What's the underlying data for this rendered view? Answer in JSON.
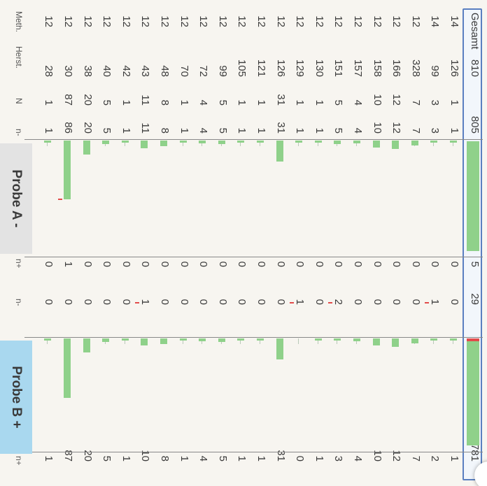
{
  "headers": {
    "meth": "Meth.",
    "herst": "Herst.",
    "n": "N",
    "a_minus": "n-",
    "a_plus": "n+",
    "b_minus": "n-",
    "b_plus": "n+"
  },
  "panels": {
    "probe_a": "Probe A -",
    "probe_b": "Probe B +"
  },
  "total": {
    "label": "Gesamt",
    "n": "810",
    "a_minus": "805",
    "a_plus": "5",
    "b_minus": "29",
    "b_plus": "781"
  },
  "rows": [
    {
      "meth": "14",
      "herst": "126",
      "n": "1",
      "a_minus": "1",
      "a_plus": "0",
      "b_minus": "0",
      "b_plus": "1"
    },
    {
      "meth": "14",
      "herst": "99",
      "n": "3",
      "a_minus": "3",
      "a_plus": "0",
      "b_minus": "1",
      "b_plus": "2"
    },
    {
      "meth": "12",
      "herst": "328",
      "n": "7",
      "a_minus": "7",
      "a_plus": "0",
      "b_minus": "0",
      "b_plus": "7"
    },
    {
      "meth": "12",
      "herst": "166",
      "n": "12",
      "a_minus": "12",
      "a_plus": "0",
      "b_minus": "0",
      "b_plus": "12"
    },
    {
      "meth": "12",
      "herst": "158",
      "n": "10",
      "a_minus": "10",
      "a_plus": "0",
      "b_minus": "0",
      "b_plus": "10"
    },
    {
      "meth": "12",
      "herst": "157",
      "n": "4",
      "a_minus": "4",
      "a_plus": "0",
      "b_minus": "0",
      "b_plus": "4"
    },
    {
      "meth": "12",
      "herst": "151",
      "n": "5",
      "a_minus": "5",
      "a_plus": "0",
      "b_minus": "2",
      "b_plus": "3"
    },
    {
      "meth": "12",
      "herst": "130",
      "n": "1",
      "a_minus": "1",
      "a_plus": "0",
      "b_minus": "0",
      "b_plus": "1"
    },
    {
      "meth": "12",
      "herst": "129",
      "n": "1",
      "a_minus": "1",
      "a_plus": "0",
      "b_minus": "1",
      "b_plus": "0"
    },
    {
      "meth": "12",
      "herst": "126",
      "n": "31",
      "a_minus": "31",
      "a_plus": "0",
      "b_minus": "0",
      "b_plus": "31"
    },
    {
      "meth": "12",
      "herst": "121",
      "n": "1",
      "a_minus": "1",
      "a_plus": "0",
      "b_minus": "0",
      "b_plus": "1"
    },
    {
      "meth": "12",
      "herst": "105",
      "n": "1",
      "a_minus": "1",
      "a_plus": "0",
      "b_minus": "0",
      "b_plus": "1"
    },
    {
      "meth": "12",
      "herst": "99",
      "n": "5",
      "a_minus": "5",
      "a_plus": "0",
      "b_minus": "0",
      "b_plus": "5"
    },
    {
      "meth": "12",
      "herst": "72",
      "n": "4",
      "a_minus": "4",
      "a_plus": "0",
      "b_minus": "0",
      "b_plus": "4"
    },
    {
      "meth": "12",
      "herst": "70",
      "n": "1",
      "a_minus": "1",
      "a_plus": "0",
      "b_minus": "0",
      "b_plus": "1"
    },
    {
      "meth": "12",
      "herst": "48",
      "n": "8",
      "a_minus": "8",
      "a_plus": "0",
      "b_minus": "0",
      "b_plus": "8"
    },
    {
      "meth": "12",
      "herst": "43",
      "n": "11",
      "a_minus": "11",
      "a_plus": "0",
      "b_minus": "1",
      "b_plus": "10"
    },
    {
      "meth": "12",
      "herst": "42",
      "n": "1",
      "a_minus": "1",
      "a_plus": "0",
      "b_minus": "0",
      "b_plus": "1"
    },
    {
      "meth": "12",
      "herst": "40",
      "n": "5",
      "a_minus": "5",
      "a_plus": "0",
      "b_minus": "0",
      "b_plus": "5"
    },
    {
      "meth": "12",
      "herst": "38",
      "n": "20",
      "a_minus": "20",
      "a_plus": "0",
      "b_minus": "0",
      "b_plus": "20"
    },
    {
      "meth": "12",
      "herst": "30",
      "n": "87",
      "a_minus": "86",
      "a_plus": "1",
      "b_minus": "0",
      "b_plus": "87"
    },
    {
      "meth": "12",
      "herst": "28",
      "n": "1",
      "a_minus": "1",
      "a_plus": "0",
      "b_minus": "0",
      "b_plus": "1"
    }
  ],
  "colors": {
    "bar": "#8fd18a",
    "marker": "#e24b4b",
    "highlight_border": "#5a7fc0",
    "panel_a": "#e3e3e3",
    "panel_b": "#a9d8ef"
  }
}
